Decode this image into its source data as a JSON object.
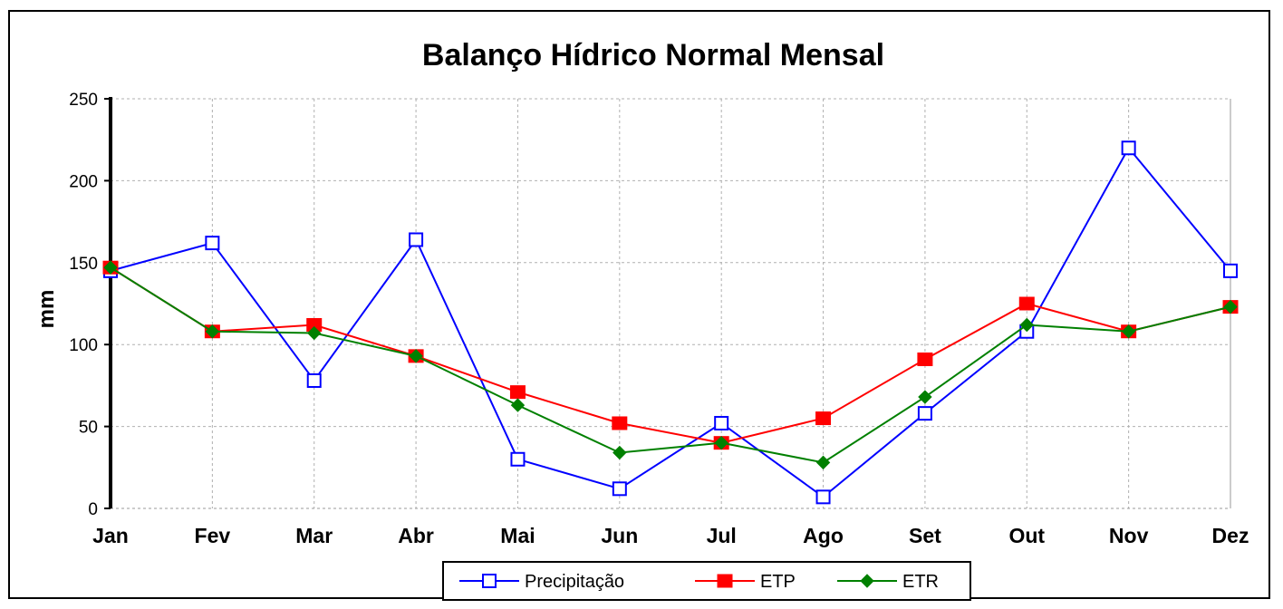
{
  "chart_data": {
    "type": "line",
    "title": "Balanço Hídrico Normal Mensal",
    "xlabel": "",
    "ylabel": "mm",
    "ylim": [
      0,
      250
    ],
    "yticks": [
      0,
      50,
      100,
      150,
      200,
      250
    ],
    "grid": true,
    "legend_position": "bottom",
    "categories": [
      "Jan",
      "Fev",
      "Mar",
      "Abr",
      "Mai",
      "Jun",
      "Jul",
      "Ago",
      "Set",
      "Out",
      "Nov",
      "Dez"
    ],
    "series": [
      {
        "name": "Precipitação",
        "color": "#0000FF",
        "marker": "hollow-square",
        "values": [
          145,
          162,
          78,
          164,
          30,
          12,
          52,
          7,
          58,
          108,
          220,
          145
        ]
      },
      {
        "name": "ETP",
        "color": "#FF0000",
        "marker": "filled-square",
        "values": [
          147,
          108,
          112,
          93,
          71,
          52,
          40,
          55,
          91,
          125,
          108,
          123
        ]
      },
      {
        "name": "ETR",
        "color": "#008000",
        "marker": "filled-diamond",
        "values": [
          147,
          108,
          107,
          93,
          63,
          34,
          40,
          28,
          68,
          112,
          108,
          123
        ]
      }
    ]
  }
}
